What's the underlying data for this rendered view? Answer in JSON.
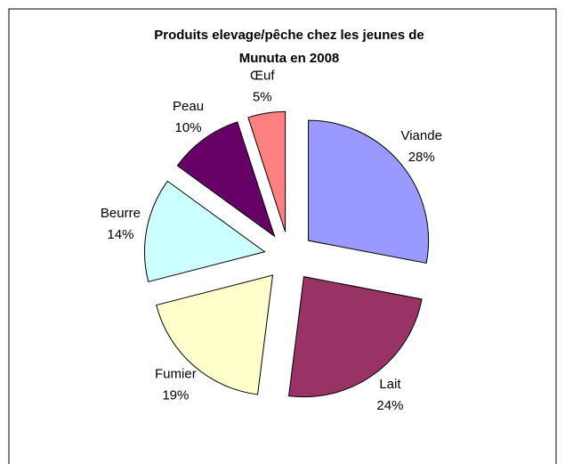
{
  "chart_data": {
    "type": "pie",
    "title": "Produits elevage/pêche chez les jeunes de Munuta en 2008",
    "categories": [
      "Viande",
      "Lait",
      "Fumier",
      "Beurre",
      "Peau",
      "Œuf"
    ],
    "values": [
      28,
      24,
      19,
      14,
      10,
      5
    ],
    "value_labels": [
      "28%",
      "24%",
      "19%",
      "14%",
      "10%",
      "5%"
    ],
    "colors": [
      "#9999ff",
      "#993366",
      "#ffffcc",
      "#ccffff",
      "#660066",
      "#ff8080"
    ],
    "exploded": true
  }
}
